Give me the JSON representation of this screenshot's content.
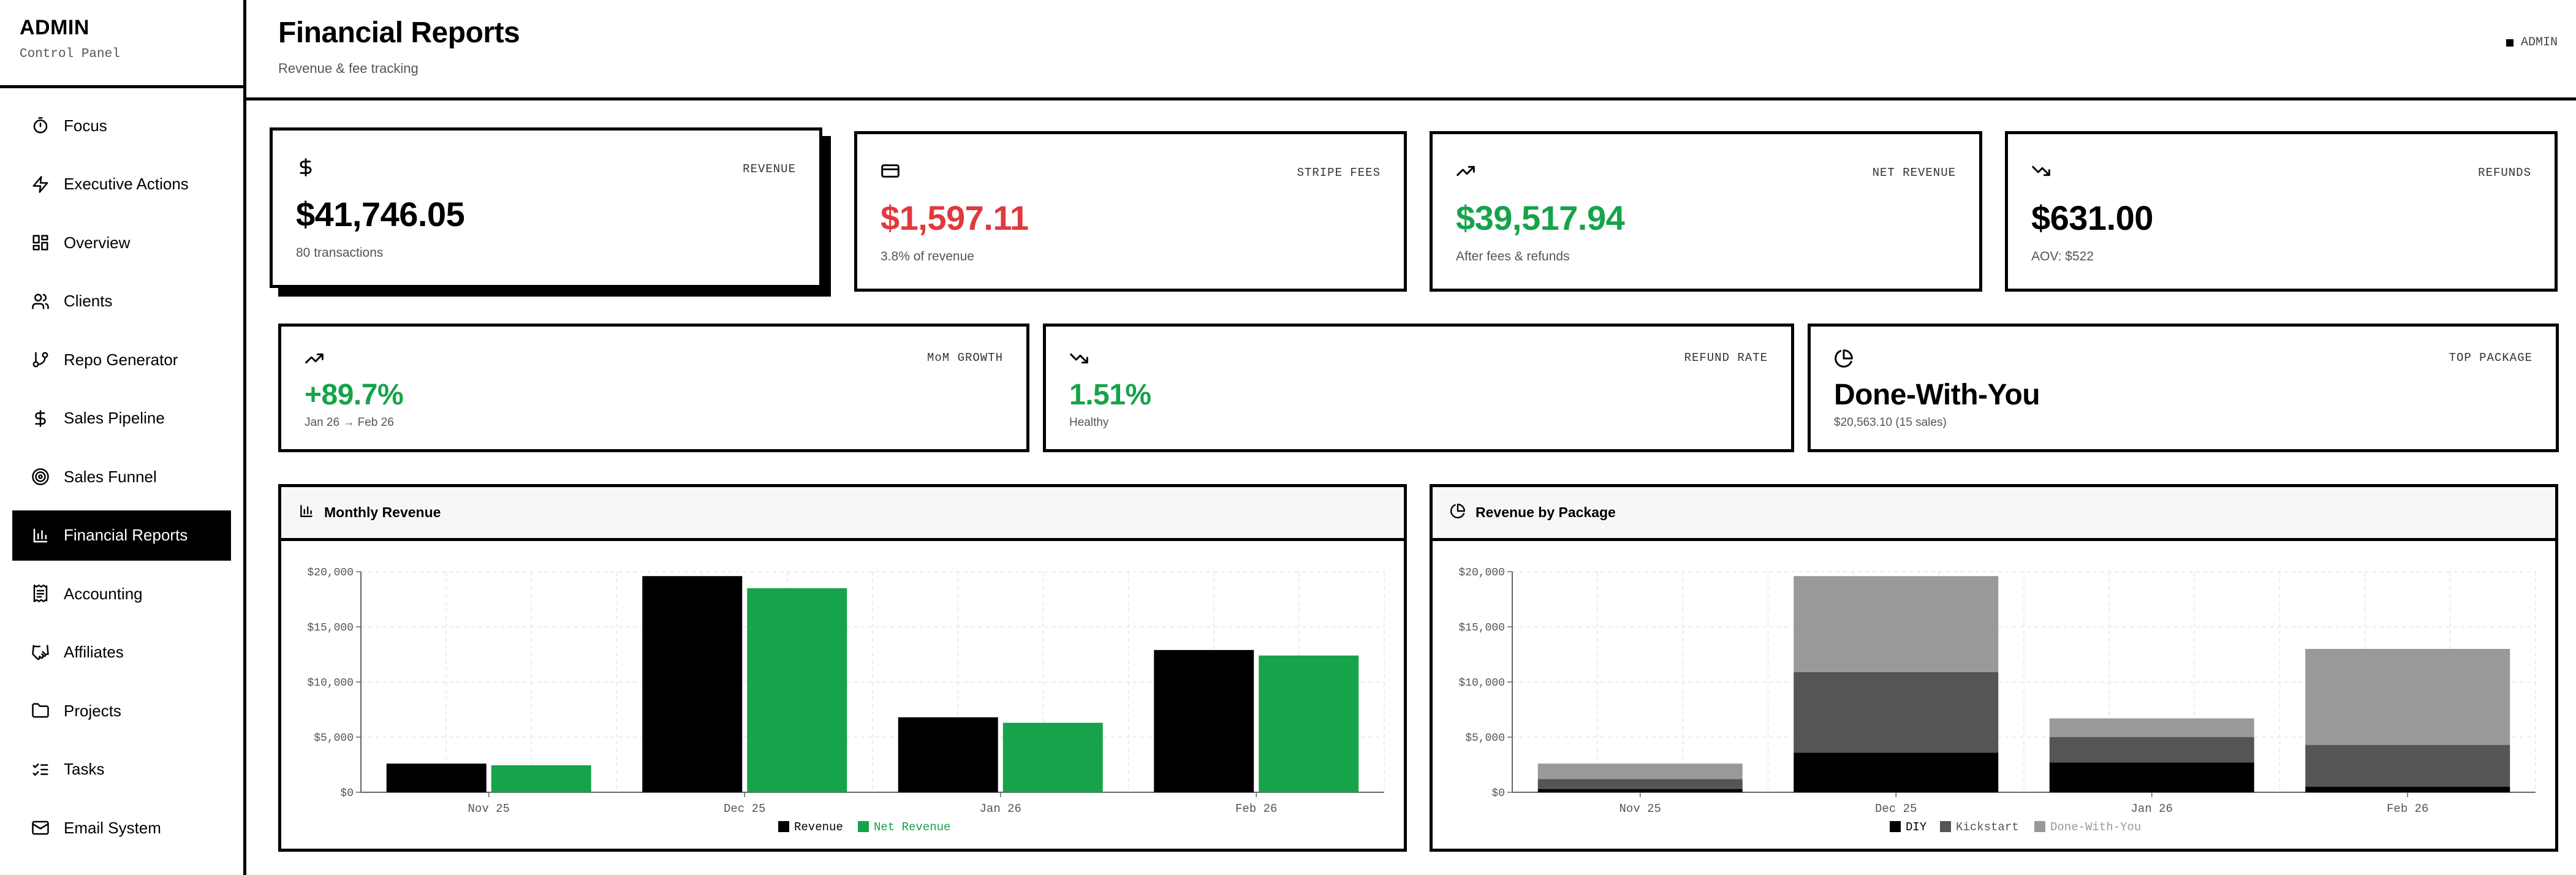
{
  "sidebar": {
    "brand_title": "ADMIN",
    "brand_sub": "Control Panel",
    "items": [
      {
        "label": "Focus",
        "icon": "timer-icon"
      },
      {
        "label": "Executive Actions",
        "icon": "lightning-icon"
      },
      {
        "label": "Overview",
        "icon": "dashboard-icon"
      },
      {
        "label": "Clients",
        "icon": "users-icon"
      },
      {
        "label": "Repo Generator",
        "icon": "git-branch-icon"
      },
      {
        "label": "Sales Pipeline",
        "icon": "dollar-icon"
      },
      {
        "label": "Sales Funnel",
        "icon": "target-icon"
      },
      {
        "label": "Financial Reports",
        "icon": "bar-chart-icon",
        "active": true
      },
      {
        "label": "Accounting",
        "icon": "receipt-icon"
      },
      {
        "label": "Affiliates",
        "icon": "handshake-icon"
      },
      {
        "label": "Projects",
        "icon": "folder-icon"
      },
      {
        "label": "Tasks",
        "icon": "list-checks-icon"
      },
      {
        "label": "Email System",
        "icon": "mail-icon"
      }
    ]
  },
  "header": {
    "title": "Financial Reports",
    "subtitle": "Revenue & fee tracking",
    "badge": "ADMIN"
  },
  "kpis": {
    "revenue": {
      "label": "REVENUE",
      "value": "$41,746.05",
      "sub": "80 transactions"
    },
    "stripe_fees": {
      "label": "STRIPE FEES",
      "value": "$1,597.11",
      "sub": "3.8% of revenue"
    },
    "net_revenue": {
      "label": "NET REVENUE",
      "value": "$39,517.94",
      "sub": "After fees & refunds"
    },
    "refunds": {
      "label": "REFUNDS",
      "value": "$631.00",
      "sub": "AOV: $522"
    },
    "mom_growth": {
      "label": "MoM GROWTH",
      "value": "+89.7%",
      "sub": "Jan 26 → Feb 26"
    },
    "refund_rate": {
      "label": "REFUND RATE",
      "value": "1.51%",
      "sub": "Healthy"
    },
    "top_package": {
      "label": "TOP PACKAGE",
      "value": "Done-With-You",
      "sub": "$20,563.10 (15 sales)"
    }
  },
  "colors": {
    "red": "#e0393e",
    "green": "#16a34a",
    "black": "#000000",
    "dark_gray": "#555555",
    "light_gray": "#999999"
  },
  "charts": {
    "monthly_title": "Monthly Revenue",
    "package_title": "Revenue by Package"
  },
  "chart_data": [
    {
      "type": "bar",
      "title": "Monthly Revenue",
      "categories": [
        "Nov 25",
        "Dec 25",
        "Jan 26",
        "Feb 26"
      ],
      "ylim": [
        0,
        20000
      ],
      "yticks": [
        "$0",
        "$5,000",
        "$10,000",
        "$15,000",
        "$20,000"
      ],
      "grid": true,
      "legend_position": "bottom",
      "series": [
        {
          "name": "Revenue",
          "color": "#000000",
          "values": [
            2600,
            19600,
            6800,
            12900
          ]
        },
        {
          "name": "Net Revenue",
          "color": "#16a34a",
          "values": [
            2450,
            18500,
            6300,
            12400
          ]
        }
      ]
    },
    {
      "type": "bar",
      "stacked": true,
      "title": "Revenue by Package",
      "categories": [
        "Nov 25",
        "Dec 25",
        "Jan 26",
        "Feb 26"
      ],
      "ylim": [
        0,
        20000
      ],
      "yticks": [
        "$0",
        "$5,000",
        "$10,000",
        "$15,000",
        "$20,000"
      ],
      "grid": true,
      "legend_position": "bottom",
      "series": [
        {
          "name": "DIY",
          "color": "#000000",
          "values": [
            300,
            3600,
            2700,
            500
          ]
        },
        {
          "name": "Kickstart",
          "color": "#555555",
          "values": [
            900,
            7300,
            2300,
            3800
          ]
        },
        {
          "name": "Done-With-You",
          "color": "#999999",
          "values": [
            1400,
            8700,
            1700,
            8700
          ]
        }
      ]
    }
  ]
}
